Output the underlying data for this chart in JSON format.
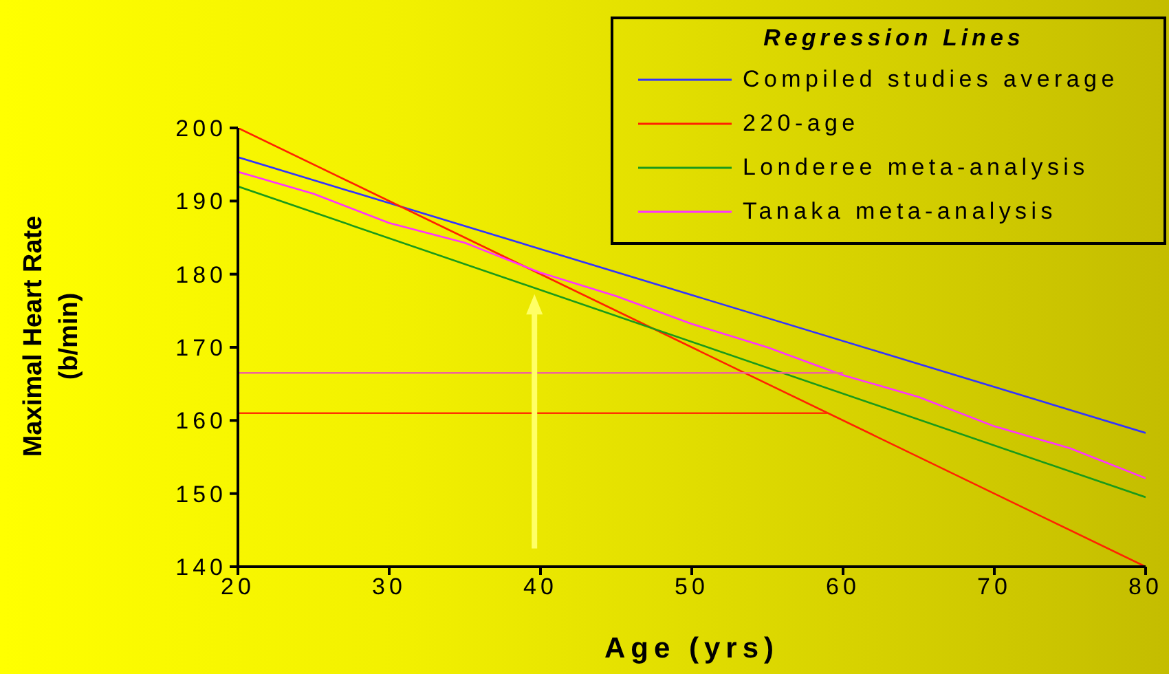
{
  "chart_data": {
    "type": "line",
    "xlabel": "Age (yrs)",
    "ylabel": "Maximal Heart Rate (b/min)",
    "legend_title": "Regression Lines",
    "legend": "top right",
    "marker": "none",
    "line_style": "solid",
    "xlim": [
      20,
      80
    ],
    "xticks": [
      20,
      30,
      40,
      50,
      60,
      70,
      80
    ],
    "ylim": [
      140,
      200
    ],
    "yticks": [
      140,
      150,
      160,
      170,
      180,
      190,
      200
    ],
    "series": [
      {
        "name": "Compiled studies average",
        "color": "#3333ff",
        "x": [
          20,
          80
        ],
        "values": [
          196,
          158.3
        ]
      },
      {
        "name": "220-age",
        "color": "#ff2200",
        "x": [
          20,
          80
        ],
        "values": [
          200,
          140
        ]
      },
      {
        "name": "Londeree meta-analysis",
        "color": "#1a9a1a",
        "x": [
          20,
          80
        ],
        "values": [
          192,
          149.5
        ]
      },
      {
        "name": "Tanaka meta-analysis",
        "color": "#ff33ff",
        "x": [
          20,
          25,
          30,
          35,
          40,
          45,
          50,
          55,
          60,
          65,
          70,
          75,
          80
        ],
        "values": [
          194,
          191,
          187,
          184.3,
          180.2,
          177,
          173.2,
          170,
          166.2,
          163.2,
          159.2,
          156.2,
          152.1
        ]
      },
      {
        "color": "#ee6699",
        "x": [
          20,
          60
        ],
        "values": [
          166.5,
          166.5
        ]
      },
      {
        "color": "#ff3300",
        "x": [
          20,
          59
        ],
        "values": [
          161,
          161
        ]
      }
    ]
  }
}
